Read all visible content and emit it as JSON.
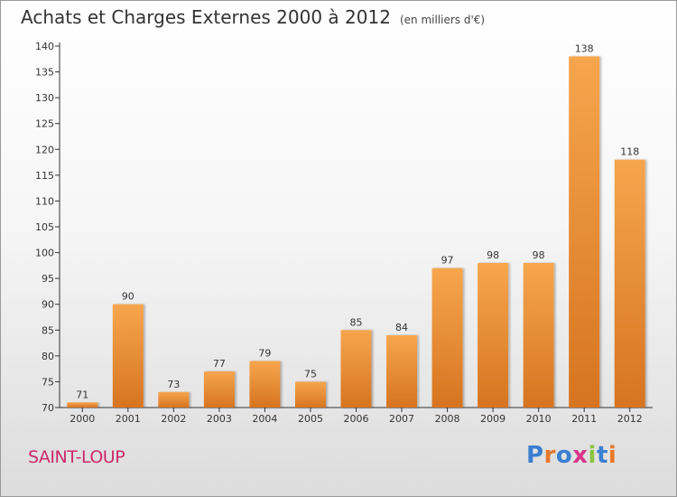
{
  "title": "Achats et Charges Externes 2000 à 2012",
  "subtitle": "(en milliers d'€)",
  "place": "SAINT-LOUP",
  "brand": {
    "text": "Proxiti",
    "letter_colors": [
      "#3a7fd0",
      "#e8782a",
      "#3a7fd0",
      "#d8358a",
      "#8bc43f",
      "#3a7fd0",
      "#e8782a"
    ]
  },
  "colors": {
    "bar_light": "#f6a64e",
    "bar_dark": "#d67420",
    "axis": "#333333"
  },
  "chart_data": {
    "type": "bar",
    "categories": [
      "2000",
      "2001",
      "2002",
      "2003",
      "2004",
      "2005",
      "2006",
      "2007",
      "2008",
      "2009",
      "2010",
      "2011",
      "2012"
    ],
    "values": [
      71,
      90,
      73,
      77,
      79,
      75,
      85,
      84,
      97,
      98,
      98,
      138,
      118
    ],
    "data_labels": [
      "71",
      "90",
      "73",
      "77",
      "79",
      "75",
      "85",
      "84",
      "97",
      "98",
      "98",
      "138",
      "118"
    ],
    "yticks": [
      "70",
      "75",
      "80",
      "85",
      "90",
      "95",
      "100",
      "105",
      "110",
      "115",
      "120",
      "125",
      "130",
      "135",
      "140"
    ],
    "ylim": [
      70,
      140
    ],
    "grid": false,
    "legend": "none"
  }
}
